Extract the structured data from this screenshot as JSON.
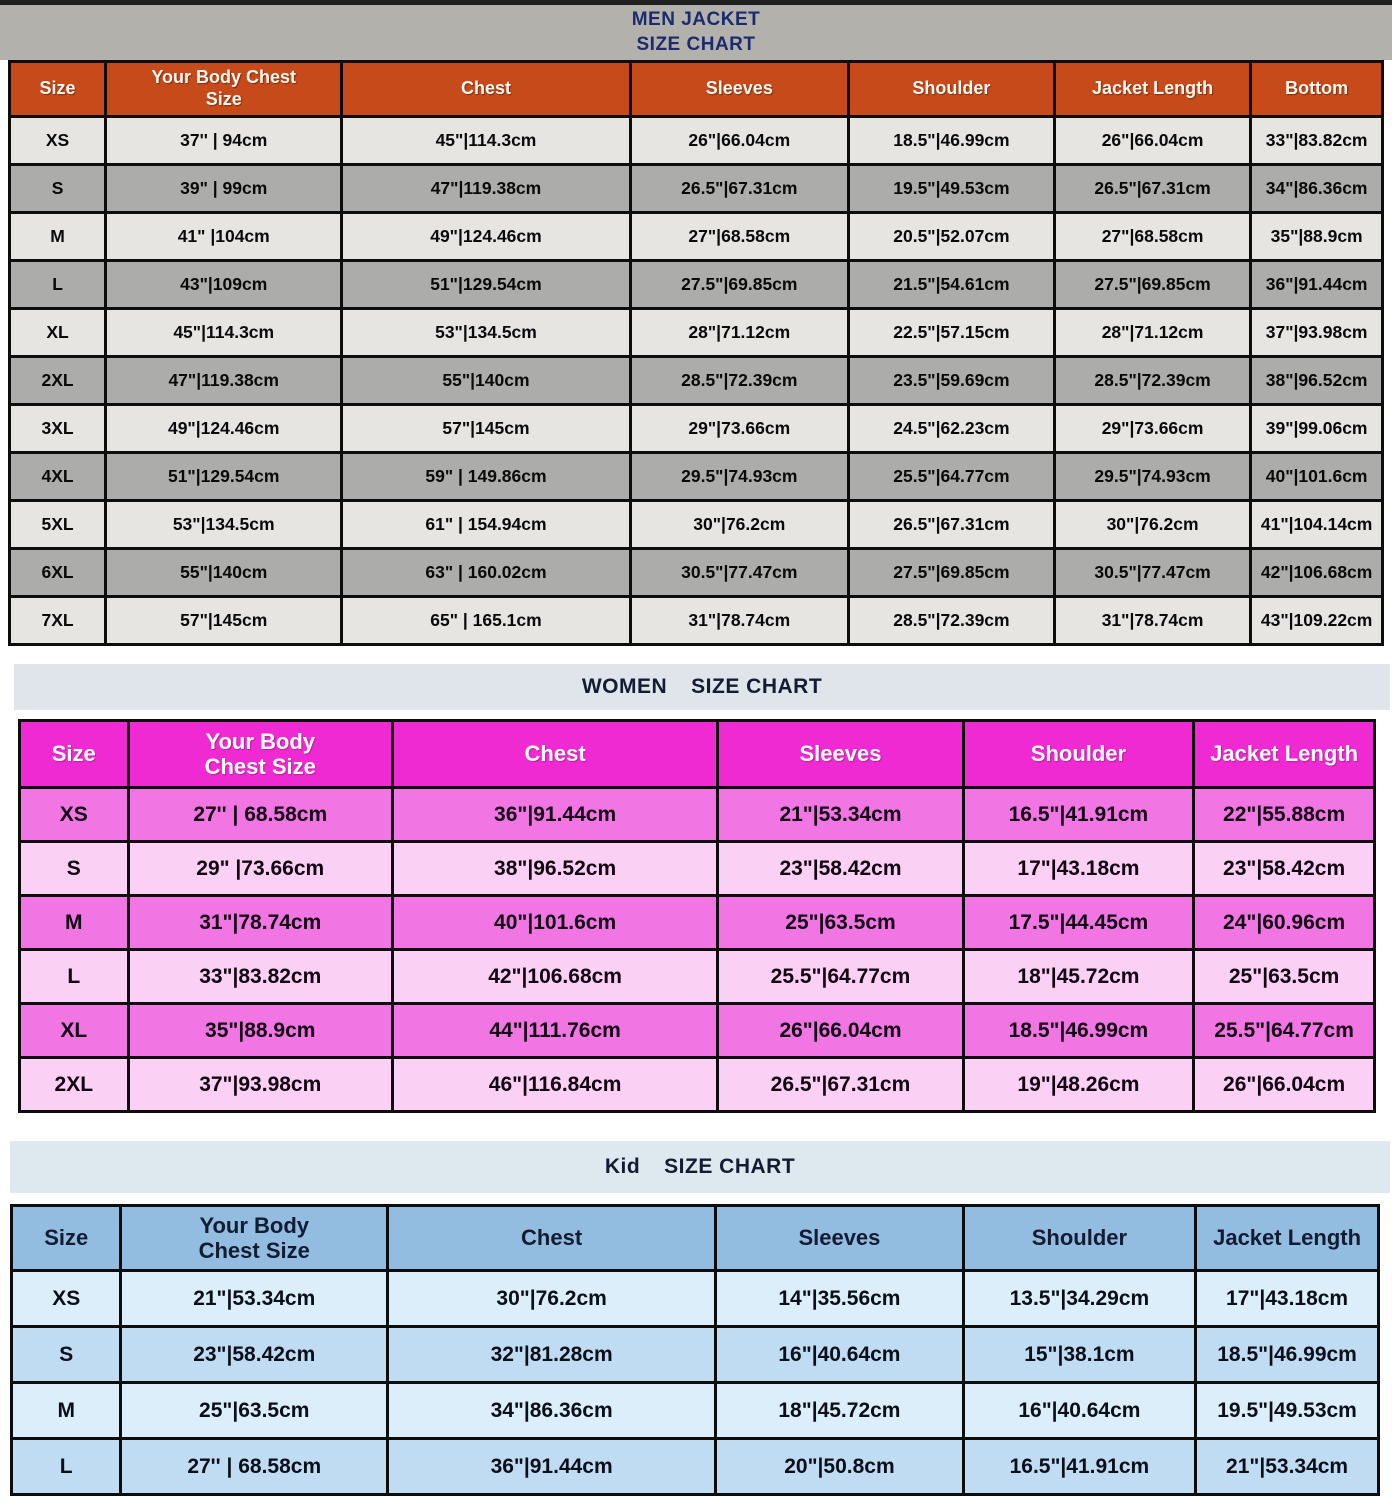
{
  "colors": {
    "men_band_bg": "#B3B1AC",
    "men_title_color": "#1C2B6E",
    "men_header_bg": "#C74A1A",
    "men_row_light": "#E6E5E2",
    "men_row_dark": "#ACACAA",
    "women_band_bg": "#DFE5EB",
    "women_header_bg": "#F02AD2",
    "women_row_bright": "#F176E4",
    "women_row_light": "#FAD0F5",
    "kid_band_bg": "#DEE8EF",
    "kid_header_bg": "#92BCE0",
    "kid_row_light": "#DCEEFA",
    "kid_row_medium": "#C0DCF2"
  },
  "men": {
    "title_line1": "MEN JACKET",
    "title_line2": "SIZE CHART",
    "columns": [
      "Size",
      "Your Body Chest\nSize",
      "Chest",
      "Sleeves",
      "Shoulder",
      "Jacket Length",
      "Bottom"
    ],
    "rows": [
      [
        "XS",
        "37'' | 94cm",
        "45\"|114.3cm",
        "26\"|66.04cm",
        "18.5\"|46.99cm",
        "26\"|66.04cm",
        "33\"|83.82cm"
      ],
      [
        "S",
        "39\" | 99cm",
        "47\"|119.38cm",
        "26.5\"|67.31cm",
        "19.5\"|49.53cm",
        "26.5\"|67.31cm",
        "34\"|86.36cm"
      ],
      [
        "M",
        "41\" |104cm",
        "49\"|124.46cm",
        "27\"|68.58cm",
        "20.5\"|52.07cm",
        "27\"|68.58cm",
        "35\"|88.9cm"
      ],
      [
        "L",
        "43\"|109cm",
        "51\"|129.54cm",
        "27.5\"|69.85cm",
        "21.5\"|54.61cm",
        "27.5\"|69.85cm",
        "36\"|91.44cm"
      ],
      [
        "XL",
        "45\"|114.3cm",
        "53\"|134.5cm",
        "28\"|71.12cm",
        "22.5\"|57.15cm",
        "28\"|71.12cm",
        "37\"|93.98cm"
      ],
      [
        "2XL",
        "47\"|119.38cm",
        "55\"|140cm",
        "28.5\"|72.39cm",
        "23.5\"|59.69cm",
        "28.5\"|72.39cm",
        "38\"|96.52cm"
      ],
      [
        "3XL",
        "49\"|124.46cm",
        "57\"|145cm",
        "29\"|73.66cm",
        "24.5\"|62.23cm",
        "29\"|73.66cm",
        "39\"|99.06cm"
      ],
      [
        "4XL",
        "51\"|129.54cm",
        "59\" | 149.86cm",
        "29.5\"|74.93cm",
        "25.5\"|64.77cm",
        "29.5\"|74.93cm",
        "40\"|101.6cm"
      ],
      [
        "5XL",
        "53\"|134.5cm",
        "61\" | 154.94cm",
        "30\"|76.2cm",
        "26.5\"|67.31cm",
        "30\"|76.2cm",
        "41\"|104.14cm"
      ],
      [
        "6XL",
        "55\"|140cm",
        "63\" | 160.02cm",
        "30.5\"|77.47cm",
        "27.5\"|69.85cm",
        "30.5\"|77.47cm",
        "42\"|106.68cm"
      ],
      [
        "7XL",
        "57\"|145cm",
        "65\" | 165.1cm",
        "31\"|78.74cm",
        "28.5\"|72.39cm",
        "31\"|78.74cm",
        "43\"|109.22cm"
      ]
    ]
  },
  "women": {
    "title_prefix": "WOMEN",
    "title_suffix": "SIZE CHART",
    "columns": [
      "Size",
      "Your Body\nChest Size",
      "Chest",
      "Sleeves",
      "Shoulder",
      "Jacket Length"
    ],
    "rows": [
      [
        "XS",
        "27'' | 68.58cm",
        "36\"|91.44cm",
        "21\"|53.34cm",
        "16.5\"|41.91cm",
        "22\"|55.88cm"
      ],
      [
        "S",
        "29\" |73.66cm",
        "38\"|96.52cm",
        "23\"|58.42cm",
        "17\"|43.18cm",
        "23\"|58.42cm"
      ],
      [
        "M",
        "31\"|78.74cm",
        "40\"|101.6cm",
        "25\"|63.5cm",
        "17.5\"|44.45cm",
        "24\"|60.96cm"
      ],
      [
        "L",
        "33\"|83.82cm",
        "42\"|106.68cm",
        "25.5\"|64.77cm",
        "18\"|45.72cm",
        "25\"|63.5cm"
      ],
      [
        "XL",
        "35\"|88.9cm",
        "44\"|111.76cm",
        "26\"|66.04cm",
        "18.5\"|46.99cm",
        "25.5\"|64.77cm"
      ],
      [
        "2XL",
        "37\"|93.98cm",
        "46\"|116.84cm",
        "26.5\"|67.31cm",
        "19\"|48.26cm",
        "26\"|66.04cm"
      ]
    ]
  },
  "kid": {
    "title_prefix": "Kid",
    "title_suffix": "SIZE CHART",
    "columns": [
      "Size",
      "Your Body\nChest Size",
      "Chest",
      "Sleeves",
      "Shoulder",
      "Jacket Length"
    ],
    "rows": [
      [
        "XS",
        "21\"|53.34cm",
        "30\"|76.2cm",
        "14\"|35.56cm",
        "13.5\"|34.29cm",
        "17\"|43.18cm"
      ],
      [
        "S",
        "23\"|58.42cm",
        "32\"|81.28cm",
        "16\"|40.64cm",
        "15\"|38.1cm",
        "18.5\"|46.99cm"
      ],
      [
        "M",
        "25\"|63.5cm",
        "34\"|86.36cm",
        "18\"|45.72cm",
        "16\"|40.64cm",
        "19.5\"|49.53cm"
      ],
      [
        "L",
        "27'' | 68.58cm",
        "36\"|91.44cm",
        "20\"|50.8cm",
        "16.5\"|41.91cm",
        "21\"|53.34cm"
      ]
    ]
  }
}
